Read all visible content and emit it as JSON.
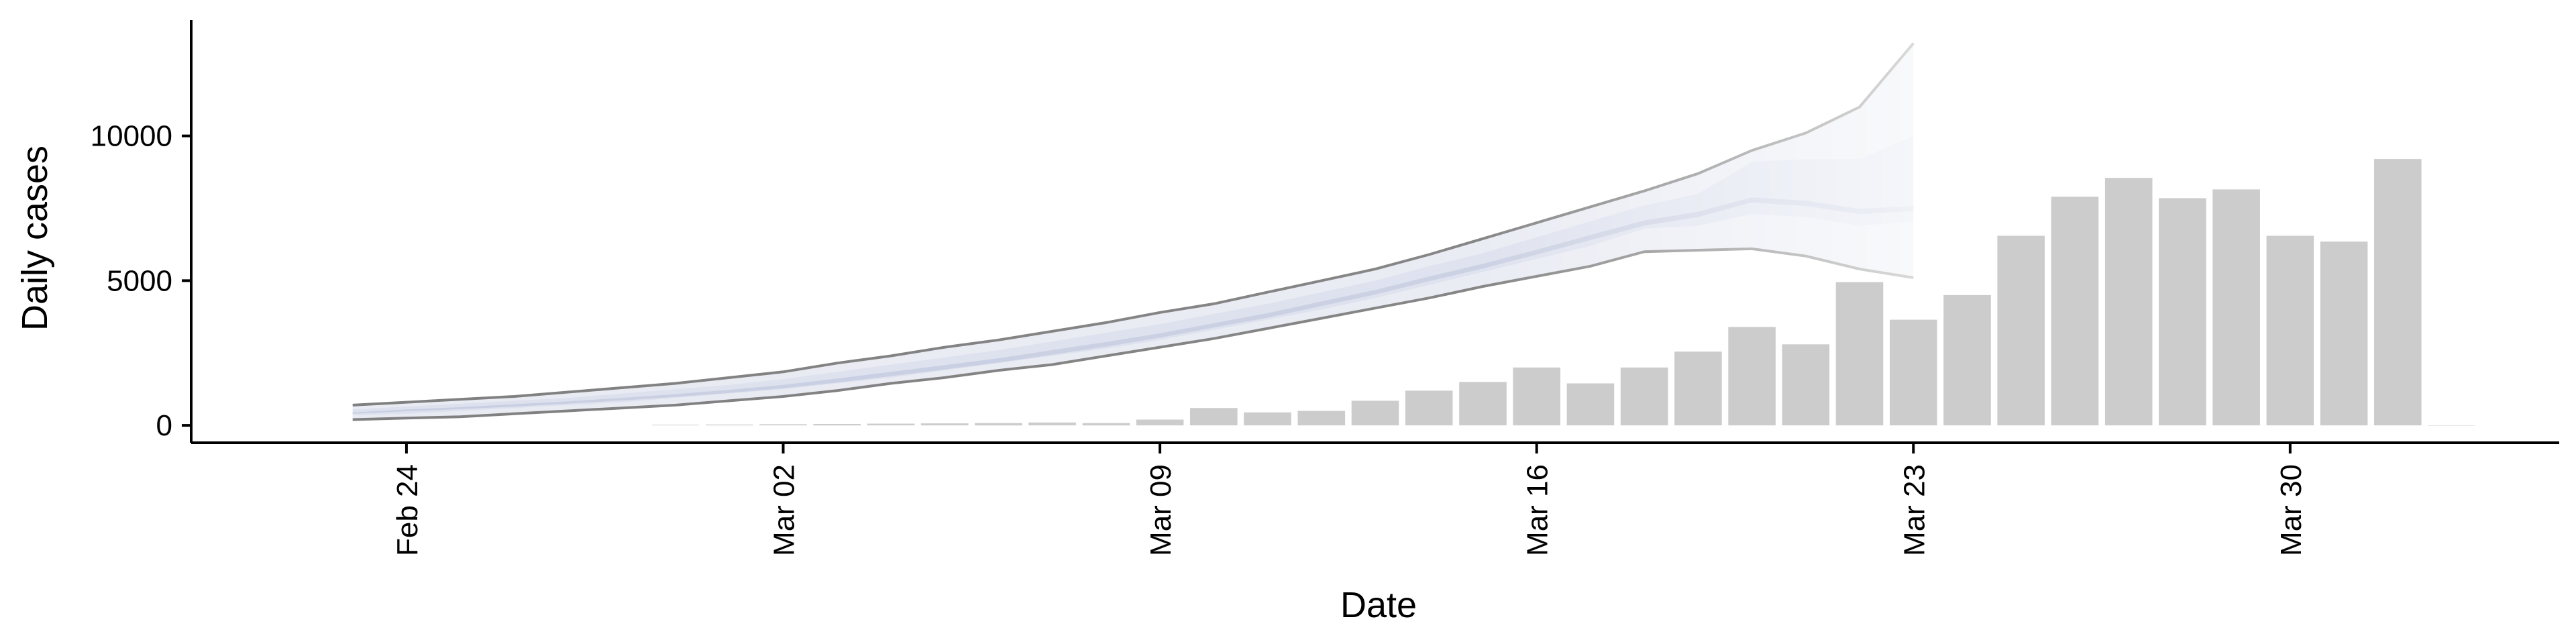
{
  "chart_data": {
    "type": "bar",
    "title": "",
    "xlabel": "Date",
    "ylabel": "Daily cases",
    "xlim": [
      "2020-02-20",
      "2020-04-04"
    ],
    "ylim": [
      -600,
      14000
    ],
    "x_ticks": [
      {
        "date": "2020-02-24",
        "label": "Feb 24"
      },
      {
        "date": "2020-03-02",
        "label": "Mar 02"
      },
      {
        "date": "2020-03-09",
        "label": "Mar 09"
      },
      {
        "date": "2020-03-16",
        "label": "Mar 16"
      },
      {
        "date": "2020-03-23",
        "label": "Mar 23"
      },
      {
        "date": "2020-03-30",
        "label": "Mar 30"
      }
    ],
    "y_ticks": [
      {
        "value": 0,
        "label": "0"
      },
      {
        "value": 5000,
        "label": "5000"
      },
      {
        "value": 10000,
        "label": "10000"
      }
    ],
    "grid": false,
    "legend": "none",
    "colors": {
      "bars": "#cccccc",
      "band_outer": "#e9ebf3",
      "band_mid": "#dde1ee",
      "band_inner": "#c9cfe2",
      "bound_lines": "#808080"
    },
    "series": [
      {
        "type": "bar",
        "dates": [
          "2020-02-29",
          "2020-03-01",
          "2020-03-02",
          "2020-03-03",
          "2020-03-04",
          "2020-03-05",
          "2020-03-06",
          "2020-03-07",
          "2020-03-08",
          "2020-03-09",
          "2020-03-10",
          "2020-03-11",
          "2020-03-12",
          "2020-03-13",
          "2020-03-14",
          "2020-03-15",
          "2020-03-16",
          "2020-03-17",
          "2020-03-18",
          "2020-03-19",
          "2020-03-20",
          "2020-03-21",
          "2020-03-22",
          "2020-03-23",
          "2020-03-24",
          "2020-03-25",
          "2020-03-26",
          "2020-03-27",
          "2020-03-28",
          "2020-03-29",
          "2020-03-30",
          "2020-03-31",
          "2020-04-01",
          "2020-04-02"
        ],
        "values": [
          20,
          30,
          40,
          50,
          60,
          70,
          80,
          100,
          80,
          200,
          600,
          450,
          500,
          850,
          1200,
          1500,
          2000,
          1450,
          2000,
          2550,
          3400,
          2800,
          4950,
          3650,
          4500,
          6550,
          7900,
          8550,
          7850,
          8150,
          6550,
          6350,
          9200,
          0
        ]
      },
      {
        "type": "band",
        "dates": [
          "2020-02-23",
          "2020-02-24",
          "2020-02-25",
          "2020-02-26",
          "2020-02-27",
          "2020-02-28",
          "2020-02-29",
          "2020-03-01",
          "2020-03-02",
          "2020-03-03",
          "2020-03-04",
          "2020-03-05",
          "2020-03-06",
          "2020-03-07",
          "2020-03-08",
          "2020-03-09",
          "2020-03-10",
          "2020-03-11",
          "2020-03-12",
          "2020-03-13",
          "2020-03-14",
          "2020-03-15",
          "2020-03-16",
          "2020-03-17",
          "2020-03-18",
          "2020-03-19",
          "2020-03-20",
          "2020-03-21",
          "2020-03-22",
          "2020-03-23"
        ],
        "outer_upper": [
          700,
          800,
          900,
          1000,
          1150,
          1300,
          1450,
          1650,
          1850,
          2150,
          2400,
          2700,
          2950,
          3250,
          3550,
          3900,
          4200,
          4600,
          5000,
          5400,
          5900,
          6450,
          7000,
          7550,
          8100,
          8700,
          9500,
          10100,
          11000,
          13200
        ],
        "outer_lower": [
          200,
          250,
          300,
          400,
          500,
          600,
          700,
          850,
          1000,
          1200,
          1450,
          1650,
          1900,
          2100,
          2400,
          2700,
          3000,
          3350,
          3700,
          4050,
          4400,
          4800,
          5150,
          5500,
          6000,
          6050,
          6100,
          5850,
          5400,
          5100
        ],
        "mid_upper": [
          550,
          650,
          750,
          850,
          950,
          1100,
          1250,
          1400,
          1600,
          1850,
          2100,
          2350,
          2600,
          2900,
          3200,
          3500,
          3850,
          4200,
          4600,
          5000,
          5500,
          5950,
          6500,
          7050,
          7600,
          8000,
          9100,
          9200,
          9200,
          10000
        ],
        "mid_lower": [
          350,
          400,
          500,
          600,
          700,
          800,
          950,
          1100,
          1250,
          1450,
          1650,
          1900,
          2150,
          2400,
          2650,
          2950,
          3300,
          3650,
          4000,
          4400,
          4850,
          5300,
          5750,
          6200,
          6800,
          6900,
          7300,
          7200,
          6900,
          7050
        ],
        "inner_upper": [
          450,
          550,
          630,
          730,
          830,
          950,
          1080,
          1230,
          1400,
          1620,
          1850,
          2080,
          2320,
          2600,
          2880,
          3180,
          3530,
          3880,
          4280,
          4680,
          5140,
          5580,
          6070,
          6580,
          7080,
          7380,
          7880,
          7760,
          7480,
          7580
        ],
        "inner_lower": [
          400,
          490,
          560,
          650,
          750,
          860,
          980,
          1120,
          1280,
          1480,
          1700,
          1930,
          2170,
          2440,
          2720,
          3030,
          3380,
          3720,
          4120,
          4520,
          4980,
          5420,
          5900,
          6400,
          6900,
          7200,
          7700,
          7580,
          7300,
          7400
        ]
      }
    ]
  }
}
